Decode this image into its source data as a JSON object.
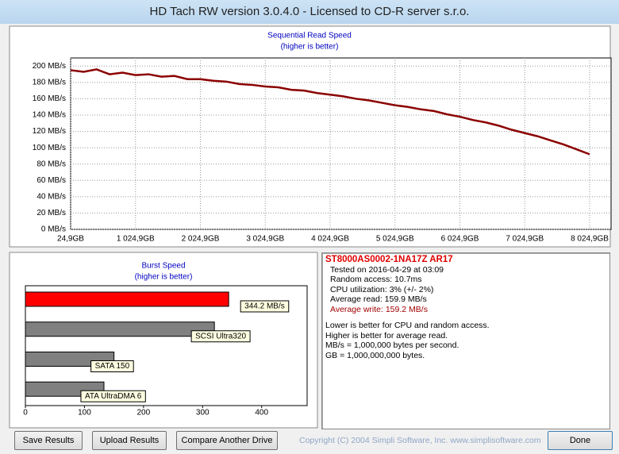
{
  "window": {
    "title": "HD Tach RW version 3.0.4.0 - Licensed to CD-R server s.r.o."
  },
  "chart_data": [
    {
      "type": "line",
      "title": "Sequential Read Speed",
      "subtitle": "(higher is better)",
      "x": [
        24.9,
        224.9,
        424.9,
        624.9,
        824.9,
        1024.9,
        1224.9,
        1424.9,
        1624.9,
        1824.9,
        2024.9,
        2224.9,
        2424.9,
        2624.9,
        2824.9,
        3024.9,
        3224.9,
        3424.9,
        3624.9,
        3824.9,
        4024.9,
        4224.9,
        4424.9,
        4624.9,
        4824.9,
        5024.9,
        5224.9,
        5424.9,
        5624.9,
        5824.9,
        6024.9,
        6224.9,
        6424.9,
        6624.9,
        6824.9,
        7024.9,
        7224.9,
        7424.9,
        7624.9,
        7824.9,
        8024.9
      ],
      "series": [
        {
          "color": "#8b0000",
          "values": [
            195,
            193,
            196,
            190,
            192,
            189,
            190,
            187,
            188,
            184,
            184,
            182,
            181,
            178,
            177,
            175,
            174,
            171,
            170,
            167,
            165,
            163,
            160,
            158,
            155,
            152,
            150,
            147,
            145,
            141,
            138,
            134,
            131,
            127,
            122,
            118,
            114,
            109,
            104,
            98,
            92
          ]
        }
      ],
      "xlim": [
        24.9,
        8355
      ],
      "xticks": [
        {
          "value": 24.9,
          "label": "24,9GB"
        },
        {
          "value": 1024.9,
          "label": "1 024,9GB"
        },
        {
          "value": 2024.9,
          "label": "2 024,9GB"
        },
        {
          "value": 3024.9,
          "label": "3 024,9GB"
        },
        {
          "value": 4024.9,
          "label": "4 024,9GB"
        },
        {
          "value": 5024.9,
          "label": "5 024,9GB"
        },
        {
          "value": 6024.9,
          "label": "6 024,9GB"
        },
        {
          "value": 7024.9,
          "label": "7 024,9GB"
        },
        {
          "value": 8024.9,
          "label": "8 024,9GB"
        }
      ],
      "ylim": [
        0,
        210
      ],
      "yticks": [
        {
          "value": 0,
          "label": "0 MB/s"
        },
        {
          "value": 20,
          "label": "20 MB/s"
        },
        {
          "value": 40,
          "label": "40 MB/s"
        },
        {
          "value": 60,
          "label": "60 MB/s"
        },
        {
          "value": 80,
          "label": "80 MB/s"
        },
        {
          "value": 100,
          "label": "100 MB/s"
        },
        {
          "value": 120,
          "label": "120 MB/s"
        },
        {
          "value": 140,
          "label": "140 MB/s"
        },
        {
          "value": 160,
          "label": "160 MB/s"
        },
        {
          "value": 180,
          "label": "180 MB/s"
        },
        {
          "value": 200,
          "label": "200 MB/s"
        }
      ],
      "grid": true
    },
    {
      "type": "barh",
      "title": "Burst Speed",
      "subtitle": "(higher is better)",
      "categories": [
        null,
        "SCSI Ultra320",
        "SATA 150",
        "ATA UltraDMA 6"
      ],
      "values": [
        344.2,
        320,
        150,
        133
      ],
      "value_labels": [
        "344.2 MB/s",
        null,
        null,
        null
      ],
      "colors": [
        "#ff0000",
        "#808080",
        "#808080",
        "#808080"
      ],
      "xlim": [
        0,
        477
      ],
      "xticks": [
        0,
        100,
        200,
        300,
        400
      ]
    }
  ],
  "info": {
    "drive": "ST8000AS0002-1NA17Z AR17",
    "lines": [
      "Tested on 2016-04-29 at 03:09",
      "Random access: 10.7ms",
      "CPU utilization: 3% (+/- 2%)",
      "Average read: 159.9 MB/s"
    ],
    "write": "Average write: 159.2 MB/s",
    "notes": [
      "Lower is better for CPU and random access.",
      "Higher is better for average read.",
      "MB/s = 1,000,000 bytes per second.",
      "GB = 1,000,000,000 bytes."
    ]
  },
  "buttons": [
    "Save Results",
    "Upload Results",
    "Compare Another Drive",
    "Done"
  ],
  "copyright": "Copyright (C) 2004 Simpli Software, Inc. www.simplisoftware.com"
}
